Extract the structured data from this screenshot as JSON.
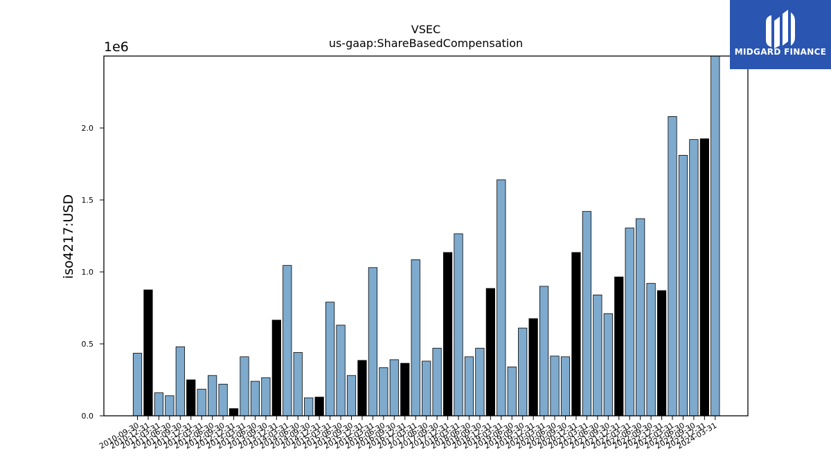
{
  "brand": {
    "name": "MIDGARD FINANCE",
    "bg": "#2a55b1"
  },
  "chart_data": {
    "type": "bar",
    "title": "VSEC",
    "subtitle": "us-gaap:ShareBasedCompensation",
    "ylabel": "iso4217:USD",
    "xlabel": "",
    "y_offset_label": "1e6",
    "y_multiplier": 1000000,
    "ylim": [
      0,
      2500000
    ],
    "yticks": [
      0,
      500000,
      1000000,
      1500000,
      2000000
    ],
    "ytick_labels": [
      "0.0",
      "0.5",
      "1.0",
      "1.5",
      "2.0"
    ],
    "colors": {
      "quarterly": "#7eaacd",
      "annual": "#000000"
    },
    "grid": false,
    "categories": [
      "2010-09-30",
      "2010-12-31",
      "2011-03-31",
      "2011-06-30",
      "2011-09-30",
      "2011-12-31",
      "2012-03-31",
      "2012-06-30",
      "2012-09-30",
      "2012-12-31",
      "2013-03-31",
      "2013-06-30",
      "2013-09-30",
      "2013-12-31",
      "2014-03-31",
      "2014-06-30",
      "2014-09-30",
      "2014-12-31",
      "2015-03-31",
      "2015-06-30",
      "2015-09-30",
      "2015-12-31",
      "2016-03-31",
      "2016-06-30",
      "2016-09-30",
      "2016-12-31",
      "2017-03-31",
      "2017-06-30",
      "2017-09-30",
      "2017-12-31",
      "2018-03-31",
      "2018-06-30",
      "2018-09-30",
      "2018-12-31",
      "2019-03-31",
      "2019-06-30",
      "2019-09-30",
      "2019-12-31",
      "2020-03-31",
      "2020-06-30",
      "2020-09-30",
      "2020-12-31",
      "2021-03-31",
      "2021-06-30",
      "2021-09-30",
      "2021-12-31",
      "2022-03-31",
      "2022-06-30",
      "2022-09-30",
      "2022-12-31",
      "2023-03-31",
      "2023-06-30",
      "2023-09-30",
      "2023-12-31",
      "2024-03-31"
    ],
    "xtick_labels": [
      "2010-09-30",
      "2010-12-31",
      "2011-03-31",
      "2011-06-30",
      "2011-09-30",
      "2011-12-31",
      "2012-03-31",
      "2012-06-30",
      "2012-09-30",
      "2012-12-31",
      "2013-03-31",
      "2013-06-30",
      "2013-09-30",
      "2013-12-31",
      "2014-03-31",
      "2014-06-30",
      "2014-09-30",
      "2014-12-31",
      "2015-03-31",
      "2015-06-30",
      "2015-09-30",
      "2015-12-31",
      "2016-03-31",
      "2016-06-30",
      "2016-09-30",
      "2016-12-31",
      "2017-03-31",
      "2017-06-30",
      "2017-09-30",
      "2017-12-31",
      "2018-03-31",
      "2018-06-30",
      "2018-09-30",
      "2018-12-31",
      "2019-03-31",
      "2019-06-30",
      "2019-09-30",
      "2019-12-31",
      "2020-03-31",
      "2020-06-30",
      "2020-09-30",
      "2020-12-31",
      "2021-03-31",
      "2021-06-30",
      "2021-09-30",
      "2021-12-31",
      "2022-03-31",
      "2022-06-30",
      "2022-09-30",
      "2022-12-31",
      "2023-03-31",
      "2023-06-30",
      "2023-09-30",
      "2023-12-31",
      "2024-03-31"
    ],
    "values": [
      435000,
      875000,
      160000,
      140000,
      480000,
      250000,
      185000,
      280000,
      220000,
      50000,
      410000,
      240000,
      265000,
      665000,
      1045000,
      440000,
      125000,
      130000,
      790000,
      630000,
      280000,
      385000,
      1030000,
      335000,
      390000,
      365000,
      1085000,
      380000,
      470000,
      1135000,
      1265000,
      410000,
      470000,
      885000,
      1640000,
      340000,
      610000,
      675000,
      900000,
      415000,
      410000,
      1135000,
      1420000,
      840000,
      710000,
      965000,
      1305000,
      1370000,
      920000,
      870000,
      2080000,
      1810000,
      1920000,
      1925000,
      2500000
    ],
    "annual_flags": [
      false,
      true,
      false,
      false,
      false,
      true,
      false,
      false,
      false,
      true,
      false,
      false,
      false,
      true,
      false,
      false,
      false,
      true,
      false,
      false,
      false,
      true,
      false,
      false,
      false,
      true,
      false,
      false,
      false,
      true,
      false,
      false,
      false,
      true,
      false,
      false,
      false,
      true,
      false,
      false,
      false,
      true,
      false,
      false,
      false,
      true,
      false,
      false,
      false,
      true,
      false,
      false,
      false,
      true,
      false
    ]
  }
}
